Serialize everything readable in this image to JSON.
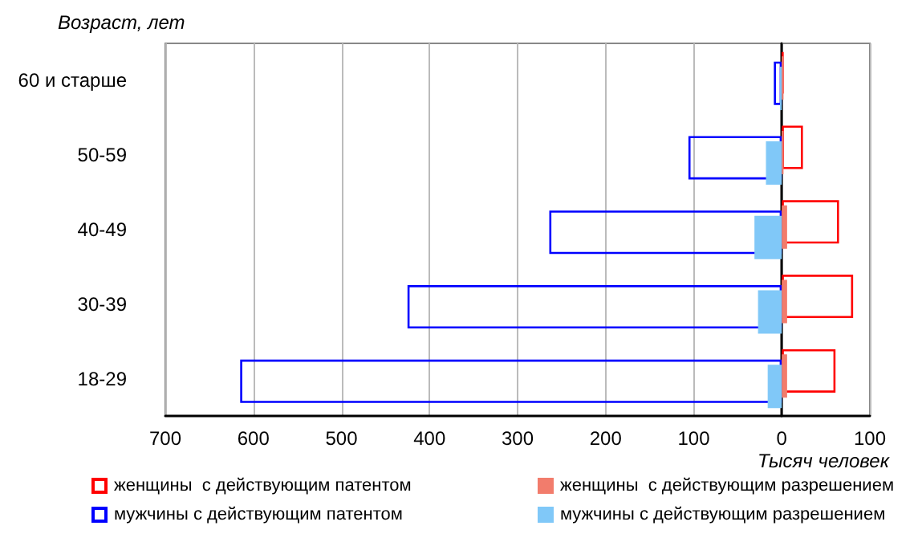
{
  "chart_data": {
    "type": "bar",
    "orientation": "horizontal",
    "xlabel": "Тысяч человек",
    "ylabel": "Возраст, лет",
    "categories": [
      "60 и старше",
      "50-59",
      "40-49",
      "30-39",
      "18-29"
    ],
    "series": [
      {
        "name": "женщины  с действующим патентом",
        "color": "#ff0000",
        "line_style": "solid",
        "values": [
          2,
          24,
          65,
          81,
          61
        ]
      },
      {
        "name": "женщины  с действующим разрешением",
        "color": "#f27c6c",
        "values": [
          2,
          2,
          6,
          6,
          6
        ]
      },
      {
        "name": "мужчины с действующим патентом",
        "color": "#0000ff",
        "line_style": "solid",
        "values": [
          -9,
          -106,
          -264,
          -425,
          -615
        ]
      },
      {
        "name": "мужчины с действующим разрешением",
        "color": "#80c8f8",
        "values": [
          -2,
          -18,
          -31,
          -27,
          -16
        ]
      }
    ],
    "xlim": [
      -700,
      100
    ],
    "xticks": [
      {
        "value": -700,
        "label": "700"
      },
      {
        "value": -600,
        "label": "600"
      },
      {
        "value": -500,
        "label": "500"
      },
      {
        "value": -400,
        "label": "400"
      },
      {
        "value": -300,
        "label": "300"
      },
      {
        "value": -200,
        "label": "200"
      },
      {
        "value": -100,
        "label": "100"
      },
      {
        "value": 0,
        "label": "0"
      },
      {
        "value": 100,
        "label": "100"
      }
    ],
    "grid": "x",
    "legend": "bottom"
  }
}
